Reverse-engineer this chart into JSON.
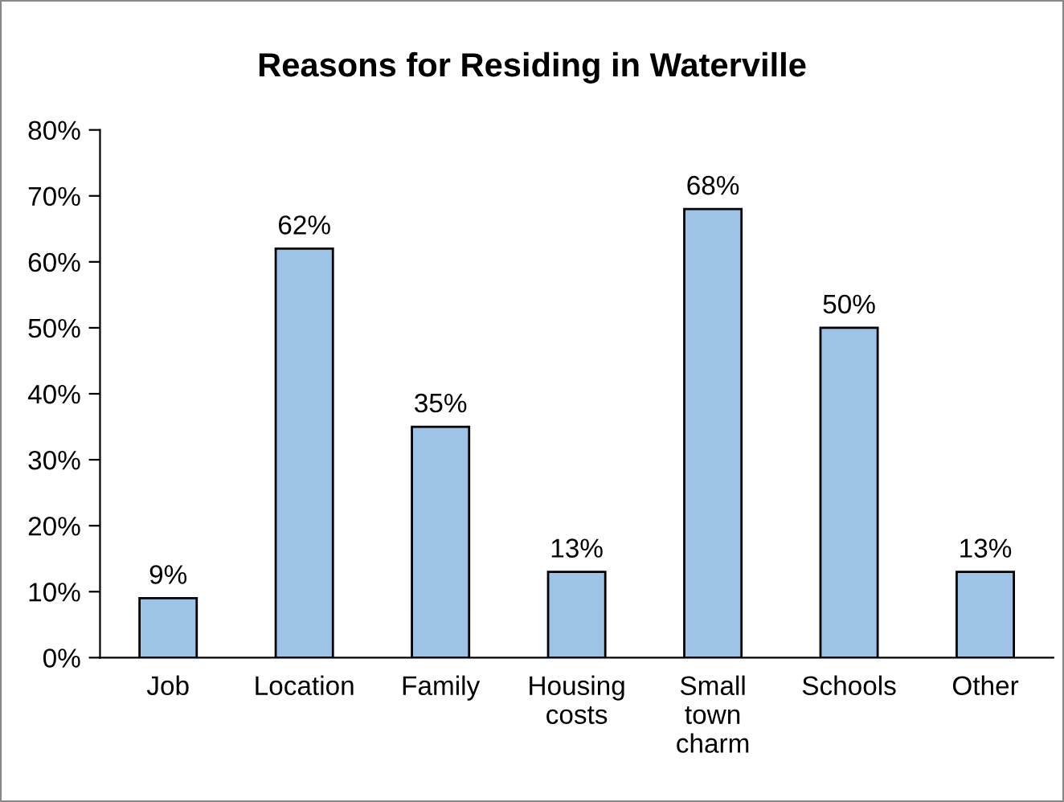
{
  "chart_data": {
    "type": "bar",
    "title": "Reasons for Residing in Waterville",
    "categories": [
      "Job",
      "Location",
      "Family",
      "Housing\ncosts",
      "Small\ntown\ncharm",
      "Schools",
      "Other"
    ],
    "values": [
      9,
      62,
      35,
      13,
      68,
      50,
      13
    ],
    "value_labels": [
      "9%",
      "62%",
      "35%",
      "13%",
      "68%",
      "50%",
      "13%"
    ],
    "color": "#9dc3e6",
    "ylim": [
      0,
      80
    ],
    "yticks": [
      {
        "value": 0,
        "label": "0%"
      },
      {
        "value": 10,
        "label": "10%"
      },
      {
        "value": 20,
        "label": "20%"
      },
      {
        "value": 30,
        "label": "30%"
      },
      {
        "value": 40,
        "label": "40%"
      },
      {
        "value": 50,
        "label": "50%"
      },
      {
        "value": 60,
        "label": "60%"
      },
      {
        "value": 70,
        "label": "70%"
      },
      {
        "value": 80,
        "label": "80%"
      }
    ],
    "grid": false
  }
}
